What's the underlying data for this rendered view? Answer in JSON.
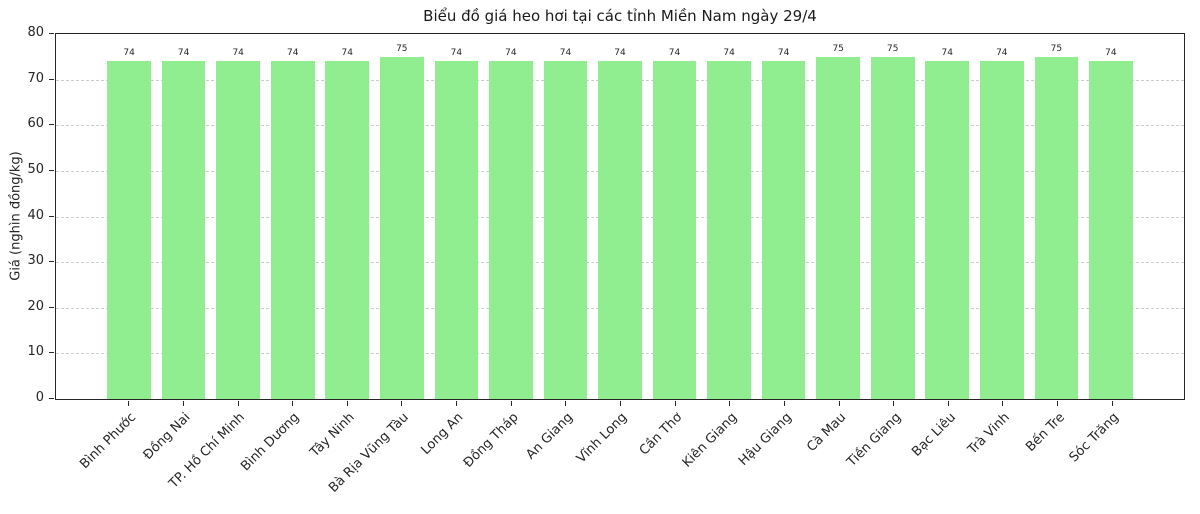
{
  "chart_data": {
    "type": "bar",
    "title": "Biểu đồ giá heo hơi tại các tỉnh Miền Nam ngày 29/4",
    "xlabel": "",
    "ylabel": "Giá (nghìn đồng/kg)",
    "categories": [
      "Bình Phước",
      "Đồng Nai",
      "TP. Hồ Chí Minh",
      "Bình Dương",
      "Tây Ninh",
      "Bà Rịa Vũng Tàu",
      "Long An",
      "Đồng Tháp",
      "An Giang",
      "Vĩnh Long",
      "Cần Thơ",
      "Kiên Giang",
      "Hậu Giang",
      "Cà Mau",
      "Tiền Giang",
      "Bạc Liêu",
      "Trà Vinh",
      "Bến Tre",
      "Sóc Trăng"
    ],
    "values": [
      74,
      74,
      74,
      74,
      74,
      75,
      74,
      74,
      74,
      74,
      74,
      74,
      74,
      75,
      75,
      74,
      74,
      75,
      74
    ],
    "ylim": [
      0,
      80
    ],
    "yticks": [
      0,
      10,
      20,
      30,
      40,
      50,
      60,
      70,
      80
    ],
    "bar_color": "#90EE90",
    "grid": true,
    "grid_style": "dashed",
    "grid_color": "#cccccc",
    "axis_text_color": "#262626",
    "value_labels_shown": true,
    "legend": "none"
  }
}
